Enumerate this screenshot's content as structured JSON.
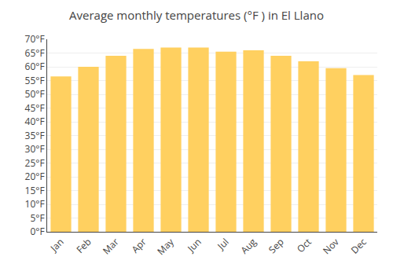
{
  "chart_data": {
    "type": "bar",
    "title": "Average monthly temperatures (°F ) in El Llano",
    "categories": [
      "Jan",
      "Feb",
      "Mar",
      "Apr",
      "May",
      "Jun",
      "Jul",
      "Aug",
      "Sep",
      "Oct",
      "Nov",
      "Dec"
    ],
    "values": [
      56.5,
      60.0,
      64.0,
      66.5,
      67.0,
      67.0,
      65.5,
      66.0,
      64.0,
      62.0,
      59.5,
      57.0
    ],
    "color": "#FFD060",
    "ylim": [
      0,
      70
    ],
    "yticks": [
      {
        "value": 0,
        "label": "0°F"
      },
      {
        "value": 5,
        "label": "5°F"
      },
      {
        "value": 10,
        "label": "10°F"
      },
      {
        "value": 15,
        "label": "15°F"
      },
      {
        "value": 20,
        "label": "20°F"
      },
      {
        "value": 25,
        "label": "25°F"
      },
      {
        "value": 30,
        "label": "30°F"
      },
      {
        "value": 35,
        "label": "35°F"
      },
      {
        "value": 40,
        "label": "40°F"
      },
      {
        "value": 45,
        "label": "45°F"
      },
      {
        "value": 50,
        "label": "50°F"
      },
      {
        "value": 55,
        "label": "55°F"
      },
      {
        "value": 60,
        "label": "60°F"
      },
      {
        "value": 65,
        "label": "65°F"
      },
      {
        "value": 70,
        "label": "70°F"
      }
    ],
    "grid": true
  }
}
